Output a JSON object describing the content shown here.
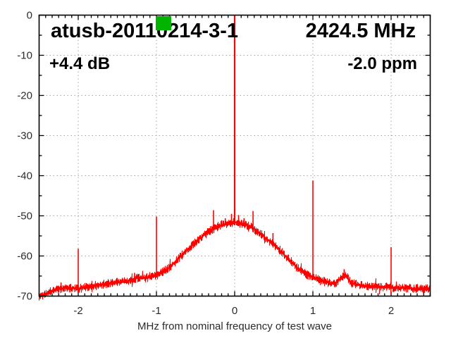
{
  "header": {
    "title": "atusb-20110214-3-1",
    "frequency": "2424.5 MHz",
    "power": "+4.4 dB",
    "ppm_offset": "-2.0 ppm"
  },
  "marker": {
    "name": "green-square-marker",
    "color": "#00b400"
  },
  "chart_data": {
    "type": "line",
    "title": "atusb-20110214-3-1",
    "annotations": {
      "center_frequency": "2424.5 MHz",
      "power": "+4.4 dB",
      "ppm_offset": "-2.0 ppm"
    },
    "xlabel": "MHz from nominal frequency of test wave",
    "ylabel": "",
    "xlim": [
      -2.5,
      2.5
    ],
    "ylim": [
      -70,
      0
    ],
    "xticks": [
      -2,
      -1,
      0,
      1,
      2
    ],
    "yticks": [
      0,
      -10,
      -20,
      -30,
      -40,
      -50,
      -60,
      -70
    ],
    "minor_x_divisions_per_mhz": 12,
    "minor_y_step_db": 5,
    "grid": true,
    "legend": false,
    "trace_color": "#ff0000",
    "grid_color": "#a6a6a6",
    "noise_amp_db": 1.0,
    "envelope_db": [
      [
        -2.5,
        -70.0
      ],
      [
        -2.42,
        -69.3
      ],
      [
        -2.3,
        -68.3
      ],
      [
        -2.15,
        -67.8
      ],
      [
        -2.0,
        -68.0
      ],
      [
        -1.8,
        -67.3
      ],
      [
        -1.6,
        -66.7
      ],
      [
        -1.4,
        -66.2
      ],
      [
        -1.25,
        -65.4
      ],
      [
        -1.1,
        -65.2
      ],
      [
        -1.0,
        -64.8
      ],
      [
        -0.9,
        -63.6
      ],
      [
        -0.8,
        -62.2
      ],
      [
        -0.7,
        -60.2
      ],
      [
        -0.6,
        -58.2
      ],
      [
        -0.5,
        -56.4
      ],
      [
        -0.4,
        -54.8
      ],
      [
        -0.3,
        -53.4
      ],
      [
        -0.2,
        -52.4
      ],
      [
        -0.1,
        -51.8
      ],
      [
        0.0,
        -51.4
      ],
      [
        0.1,
        -51.9
      ],
      [
        0.2,
        -52.5
      ],
      [
        0.3,
        -53.8
      ],
      [
        0.4,
        -55.4
      ],
      [
        0.5,
        -56.9
      ],
      [
        0.6,
        -58.8
      ],
      [
        0.7,
        -60.8
      ],
      [
        0.8,
        -62.8
      ],
      [
        0.9,
        -64.2
      ],
      [
        1.0,
        -65.2
      ],
      [
        1.1,
        -66.0
      ],
      [
        1.2,
        -66.5
      ],
      [
        1.3,
        -66.6
      ],
      [
        1.38,
        -64.9
      ],
      [
        1.42,
        -64.6
      ],
      [
        1.5,
        -66.7
      ],
      [
        1.65,
        -67.3
      ],
      [
        1.8,
        -67.5
      ],
      [
        2.0,
        -67.7
      ],
      [
        2.2,
        -67.9
      ],
      [
        2.35,
        -68.0
      ],
      [
        2.5,
        -68.1
      ]
    ],
    "spikes": [
      {
        "x_mhz": -2.22,
        "top_db": -66.6
      },
      {
        "x_mhz": -2.0,
        "top_db": -58.2
      },
      {
        "x_mhz": -1.28,
        "top_db": -64.2
      },
      {
        "x_mhz": -1.0,
        "top_db": -50.2
      },
      {
        "x_mhz": -0.27,
        "top_db": -48.6
      },
      {
        "x_mhz": -0.12,
        "top_db": -50.6
      },
      {
        "x_mhz": -0.04,
        "top_db": -49.5
      },
      {
        "x_mhz": 0.05,
        "top_db": -49.8
      },
      {
        "x_mhz": 0.12,
        "top_db": -50.6
      },
      {
        "x_mhz": 0.235,
        "top_db": -48.8
      },
      {
        "x_mhz": 0.49,
        "top_db": -54.3
      },
      {
        "x_mhz": 1.0,
        "top_db": -41.2
      },
      {
        "x_mhz": 1.4,
        "top_db": -63.3
      },
      {
        "x_mhz": 2.0,
        "top_db": -57.8
      }
    ],
    "carrier_peak": {
      "x_mhz": 0,
      "top_db": 0
    }
  }
}
